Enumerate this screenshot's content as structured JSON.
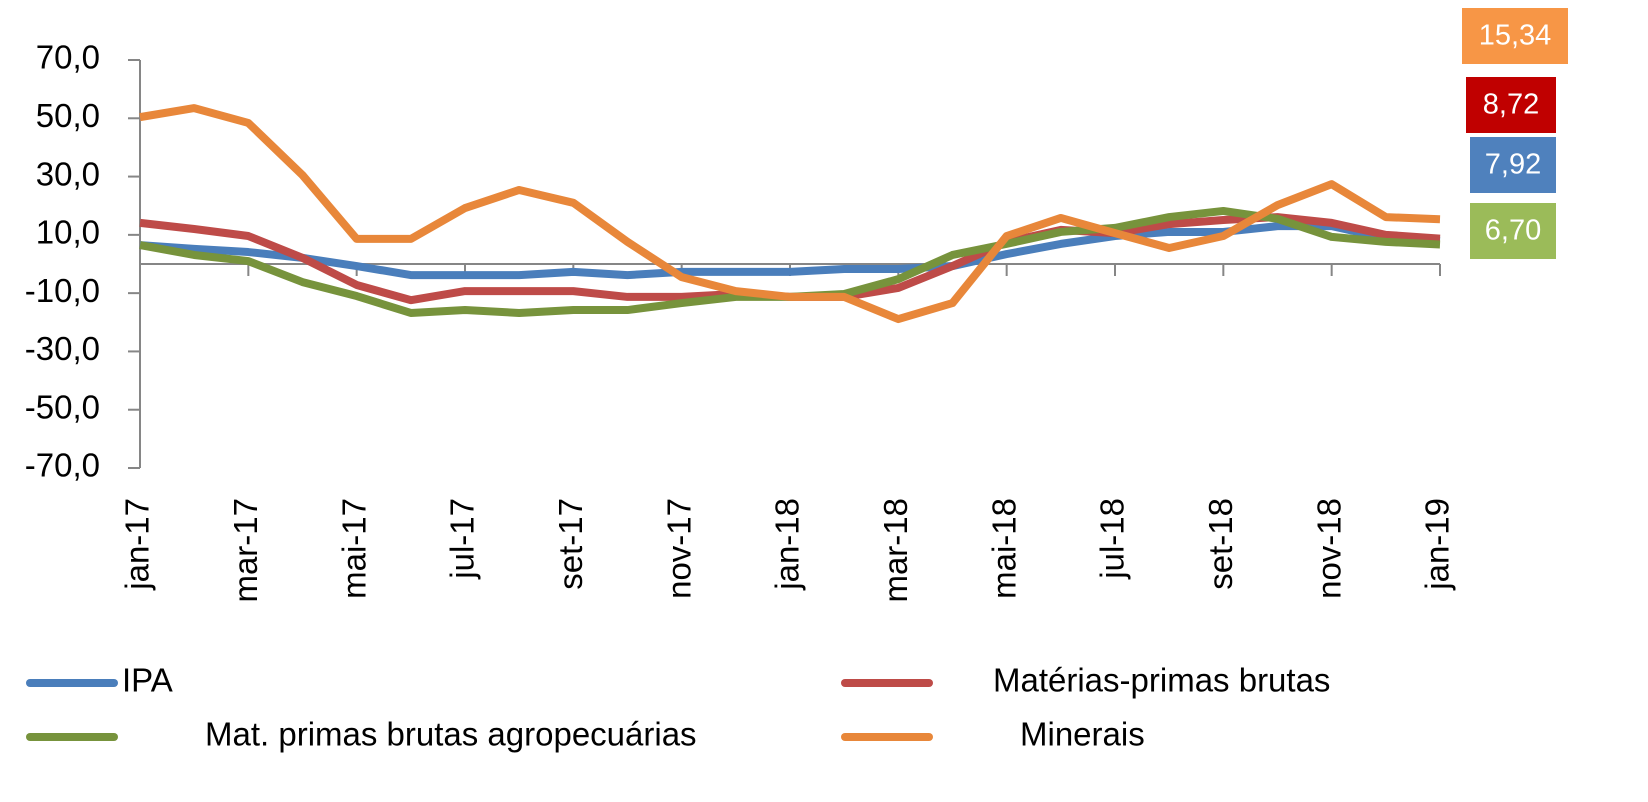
{
  "chart_data": {
    "type": "line",
    "categories": [
      "jan-17",
      null,
      "mar-17",
      null,
      "mai-17",
      null,
      "jul-17",
      null,
      "set-17",
      null,
      "nov-17",
      null,
      "jan-18",
      null,
      "mar-18",
      null,
      "mai-18",
      null,
      "jul-18",
      null,
      "set-18",
      null,
      "nov-18",
      null,
      "jan-19"
    ],
    "ylim": [
      -70,
      70
    ],
    "yticks": [
      {
        "value": -70,
        "label": "-70,0"
      },
      {
        "value": -50,
        "label": "-50,0"
      },
      {
        "value": -30,
        "label": "-30,0"
      },
      {
        "value": -10,
        "label": "-10,0"
      },
      {
        "value": 10,
        "label": "10,0"
      },
      {
        "value": 30,
        "label": "30,0"
      },
      {
        "value": 50,
        "label": "50,0"
      },
      {
        "value": 70,
        "label": "70,0"
      }
    ],
    "series": [
      {
        "name": "IPA",
        "color": "#4a7ebb",
        "values": [
          6.5,
          5.2,
          4.1,
          2.1,
          -0.7,
          -3.8,
          -3.8,
          -3.8,
          -2.7,
          -3.8,
          -2.7,
          -2.7,
          -2.7,
          -1.7,
          -1.7,
          -0.7,
          3.4,
          6.9,
          9.6,
          11,
          11,
          13,
          13,
          8.9,
          7.92
        ],
        "value_labels": [
          null,
          null,
          null,
          null,
          null,
          null,
          null,
          null,
          null,
          null,
          null,
          null,
          null,
          null,
          null,
          null,
          null,
          null,
          null,
          null,
          null,
          null,
          null,
          null,
          "7,92"
        ]
      },
      {
        "name": "Matérias-primas brutas",
        "color": "#be4b48",
        "values": [
          14.1,
          12,
          9.6,
          2.1,
          -7.2,
          -12.4,
          -9.3,
          -9.3,
          -9.3,
          -11.3,
          -11.3,
          -10.3,
          -11.3,
          -11.3,
          -8.2,
          -0.7,
          7.6,
          11.7,
          10.6,
          13.7,
          15.1,
          16.1,
          14.1,
          10,
          8.72
        ],
        "value_labels": [
          null,
          null,
          null,
          null,
          null,
          null,
          null,
          null,
          null,
          null,
          null,
          null,
          null,
          null,
          null,
          null,
          null,
          null,
          null,
          null,
          null,
          null,
          null,
          null,
          "8,72"
        ]
      },
      {
        "name": "Mat. primas brutas agropecuárias",
        "color": "#77933c",
        "values": [
          6.5,
          3.1,
          1,
          -6.2,
          -11,
          -16.8,
          -15.8,
          -16.8,
          -15.8,
          -15.8,
          -13.4,
          -11.3,
          -11.3,
          -10.3,
          -5.2,
          3.1,
          6.9,
          11,
          12.4,
          16.1,
          18.2,
          15.5,
          9.3,
          7.6,
          6.7
        ],
        "value_labels": [
          null,
          null,
          null,
          null,
          null,
          null,
          null,
          null,
          null,
          null,
          null,
          null,
          null,
          null,
          null,
          null,
          null,
          null,
          null,
          null,
          null,
          null,
          null,
          null,
          "6,70"
        ]
      },
      {
        "name": "Minerais",
        "color": "#e8873a",
        "values": [
          50.4,
          53.5,
          48.4,
          30.5,
          8.6,
          8.6,
          19.2,
          25.4,
          21,
          7.6,
          -4.5,
          -9.3,
          -11.3,
          -11.3,
          -18.9,
          -13.4,
          9.6,
          15.8,
          10.6,
          5.5,
          9.6,
          20.2,
          27.4,
          16.1,
          15.34
        ],
        "value_labels": [
          null,
          null,
          null,
          null,
          null,
          null,
          null,
          null,
          null,
          null,
          null,
          null,
          null,
          null,
          null,
          null,
          null,
          null,
          null,
          null,
          null,
          null,
          null,
          null,
          "15,34"
        ]
      }
    ],
    "box_colors": [
      "#4f81bd",
      "#c00000",
      "#9bbb59",
      "#f79646"
    ]
  }
}
